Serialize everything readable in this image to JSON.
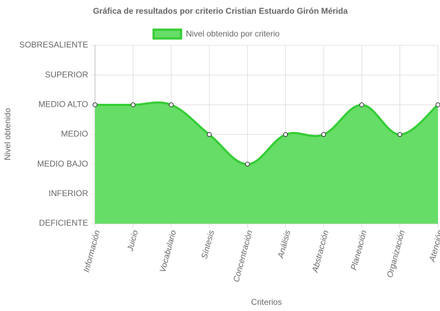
{
  "chart_data": {
    "type": "line",
    "title": "Gráfica de resultados por criterio Cristian Estuardo Girón Mérida",
    "x_label": "Criterios",
    "y_label": "Nivel obtenido",
    "categories": [
      "Información",
      "Juicio",
      "Vocabulario",
      "Síntesis",
      "Concentración",
      "Análisis",
      "Abstracción",
      "Planeación",
      "Organización",
      "Atención"
    ],
    "series": [
      {
        "name": "Nivel obtenido por criterio",
        "color": "#33cc33",
        "fill": "#66dd66",
        "values": [
          4,
          4,
          4,
          3,
          2,
          3,
          3,
          4,
          3,
          4
        ]
      }
    ],
    "ylim": [
      0,
      6
    ],
    "yticks": [
      {
        "value": 0,
        "label": "DEFICIENTE"
      },
      {
        "value": 1,
        "label": "INFERIOR"
      },
      {
        "value": 2,
        "label": "MEDIO BAJO"
      },
      {
        "value": 3,
        "label": "MEDIO"
      },
      {
        "value": 4,
        "label": "MEDIO ALTO"
      },
      {
        "value": 5,
        "label": "SUPERIOR"
      },
      {
        "value": 6,
        "label": "SOBRESALIENTE"
      }
    ],
    "grid": true,
    "legend": "top"
  }
}
